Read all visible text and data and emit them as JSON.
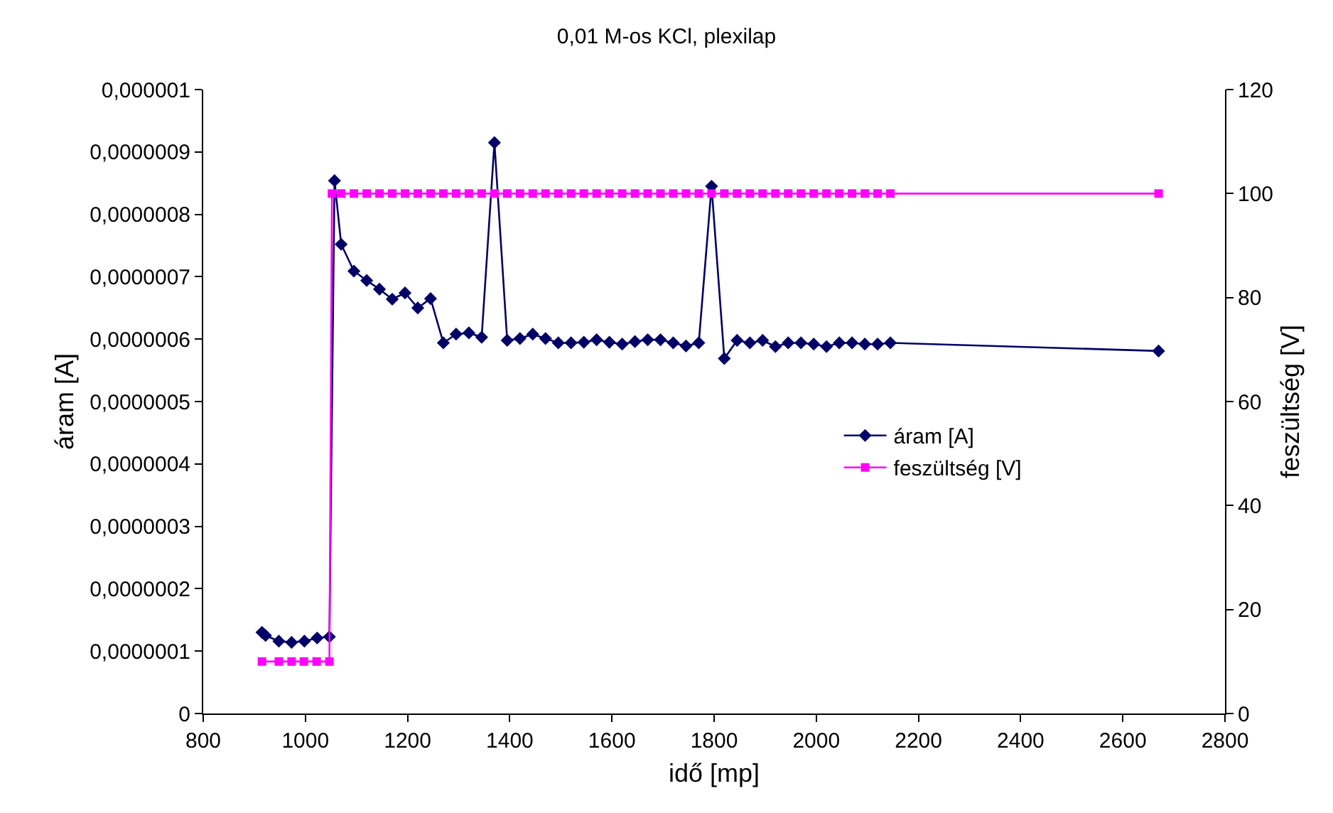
{
  "chart_data": {
    "type": "line",
    "title": "0,01 M-os KCl, plexilap",
    "xlabel": "idő [mp]",
    "ylabel": "áram [A]",
    "y2label": "feszültség [V]",
    "xlim": [
      800,
      2800
    ],
    "xticks": [
      800,
      1000,
      1200,
      1400,
      1600,
      1800,
      2000,
      2200,
      2400,
      2600,
      2800
    ],
    "ylim": [
      0,
      1e-06
    ],
    "yticks": [
      0,
      {
        "value": 1e-07,
        "label": "0,0000001"
      },
      {
        "value": 2e-07,
        "label": "0,0000002"
      },
      {
        "value": 3e-07,
        "label": "0,0000003"
      },
      {
        "value": 4e-07,
        "label": "0,0000004"
      },
      {
        "value": 5e-07,
        "label": "0,0000005"
      },
      {
        "value": 6e-07,
        "label": "0,0000006"
      },
      {
        "value": 7e-07,
        "label": "0,0000007"
      },
      {
        "value": 8e-07,
        "label": "0,0000008"
      },
      {
        "value": 9e-07,
        "label": "0,0000009"
      },
      {
        "value": 1e-06,
        "label": "0,000001"
      }
    ],
    "y2lim": [
      0,
      120
    ],
    "y2ticks": [
      0,
      20,
      40,
      60,
      80,
      100,
      120
    ],
    "legend": "right",
    "line_style": "solid",
    "series": [
      {
        "name": "áram [A]",
        "color": "#000066",
        "marker": "diamond",
        "x": [
          915,
          922,
          948,
          973,
          998,
          1023,
          1047,
          1057,
          1070,
          1095,
          1120,
          1145,
          1170,
          1195,
          1220,
          1245,
          1270,
          1295,
          1320,
          1345,
          1370,
          1395,
          1420,
          1445,
          1470,
          1495,
          1520,
          1545,
          1570,
          1595,
          1620,
          1645,
          1670,
          1695,
          1720,
          1745,
          1770,
          1795,
          1820,
          1845,
          1870,
          1895,
          1920,
          1945,
          1970,
          1995,
          2020,
          2045,
          2070,
          2095,
          2120,
          2145,
          2670
        ],
        "values": [
          1.3e-07,
          1.25e-07,
          1.16e-07,
          1.14e-07,
          1.16e-07,
          1.21e-07,
          1.23e-07,
          8.54e-07,
          7.52e-07,
          7.09e-07,
          6.94e-07,
          6.8e-07,
          6.64e-07,
          6.74e-07,
          6.5e-07,
          6.65e-07,
          5.94e-07,
          6.08e-07,
          6.1e-07,
          6.03e-07,
          9.15e-07,
          5.98e-07,
          6.01e-07,
          6.08e-07,
          6.01e-07,
          5.94e-07,
          5.94e-07,
          5.95e-07,
          5.99e-07,
          5.95e-07,
          5.92e-07,
          5.96e-07,
          5.99e-07,
          5.99e-07,
          5.94e-07,
          5.89e-07,
          5.94e-07,
          8.45e-07,
          5.69e-07,
          5.98e-07,
          5.94e-07,
          5.98e-07,
          5.88e-07,
          5.94e-07,
          5.94e-07,
          5.92e-07,
          5.88e-07,
          5.94e-07,
          5.94e-07,
          5.92e-07,
          5.92e-07,
          5.94e-07,
          5.81e-07
        ]
      },
      {
        "name": "feszültség [V]",
        "color": "#ff00ff",
        "marker": "square",
        "axis": "y2",
        "x": [
          915,
          948,
          973,
          997,
          1022,
          1047,
          1052,
          1070,
          1095,
          1120,
          1145,
          1170,
          1195,
          1220,
          1245,
          1270,
          1295,
          1320,
          1345,
          1370,
          1395,
          1420,
          1445,
          1470,
          1495,
          1520,
          1545,
          1570,
          1595,
          1620,
          1645,
          1670,
          1695,
          1720,
          1745,
          1770,
          1795,
          1820,
          1845,
          1870,
          1895,
          1920,
          1945,
          1970,
          1995,
          2020,
          2045,
          2070,
          2095,
          2120,
          2145,
          2670
        ],
        "values": [
          10,
          10,
          10,
          10,
          10,
          10,
          100,
          100,
          100,
          100,
          100,
          100,
          100,
          100,
          100,
          100,
          100,
          100,
          100,
          100,
          100,
          100,
          100,
          100,
          100,
          100,
          100,
          100,
          100,
          100,
          100,
          100,
          100,
          100,
          100,
          100,
          100,
          100,
          100,
          100,
          100,
          100,
          100,
          100,
          100,
          100,
          100,
          100,
          100,
          100,
          100,
          100
        ]
      }
    ]
  }
}
